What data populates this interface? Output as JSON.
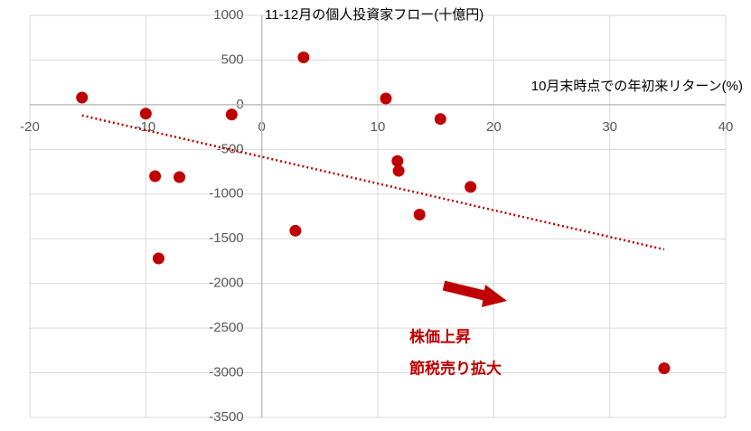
{
  "chart_data": {
    "type": "scatter",
    "title": "11-12月の個人投資家フロー(十億円)",
    "x_label": "10月末時点での年初来リターン(%)",
    "annotations": [
      "株価上昇",
      "節税売り拡大"
    ],
    "color": "#c00000",
    "x": [
      -15.5,
      -10.0,
      -9.2,
      -7.1,
      -8.9,
      -2.6,
      3.6,
      2.9,
      10.7,
      11.7,
      11.8,
      15.4,
      13.6,
      18.0,
      34.7
    ],
    "values": [
      80,
      -100,
      -800,
      -810,
      -1720,
      -110,
      530,
      -1410,
      70,
      -630,
      -740,
      -160,
      -1230,
      -920,
      -2950
    ],
    "trendline": {
      "x": [
        -15.5,
        34.7
      ],
      "values": [
        -120,
        -1620
      ]
    },
    "xlim": [
      -20,
      40
    ],
    "xticks": [
      -20,
      -10,
      0,
      10,
      20,
      30,
      40
    ],
    "ylim": [
      -3500,
      1000
    ],
    "yticks": [
      -3500,
      -3000,
      -2500,
      -2000,
      -1500,
      -1000,
      -500,
      0,
      500,
      1000
    ],
    "grid": true
  }
}
